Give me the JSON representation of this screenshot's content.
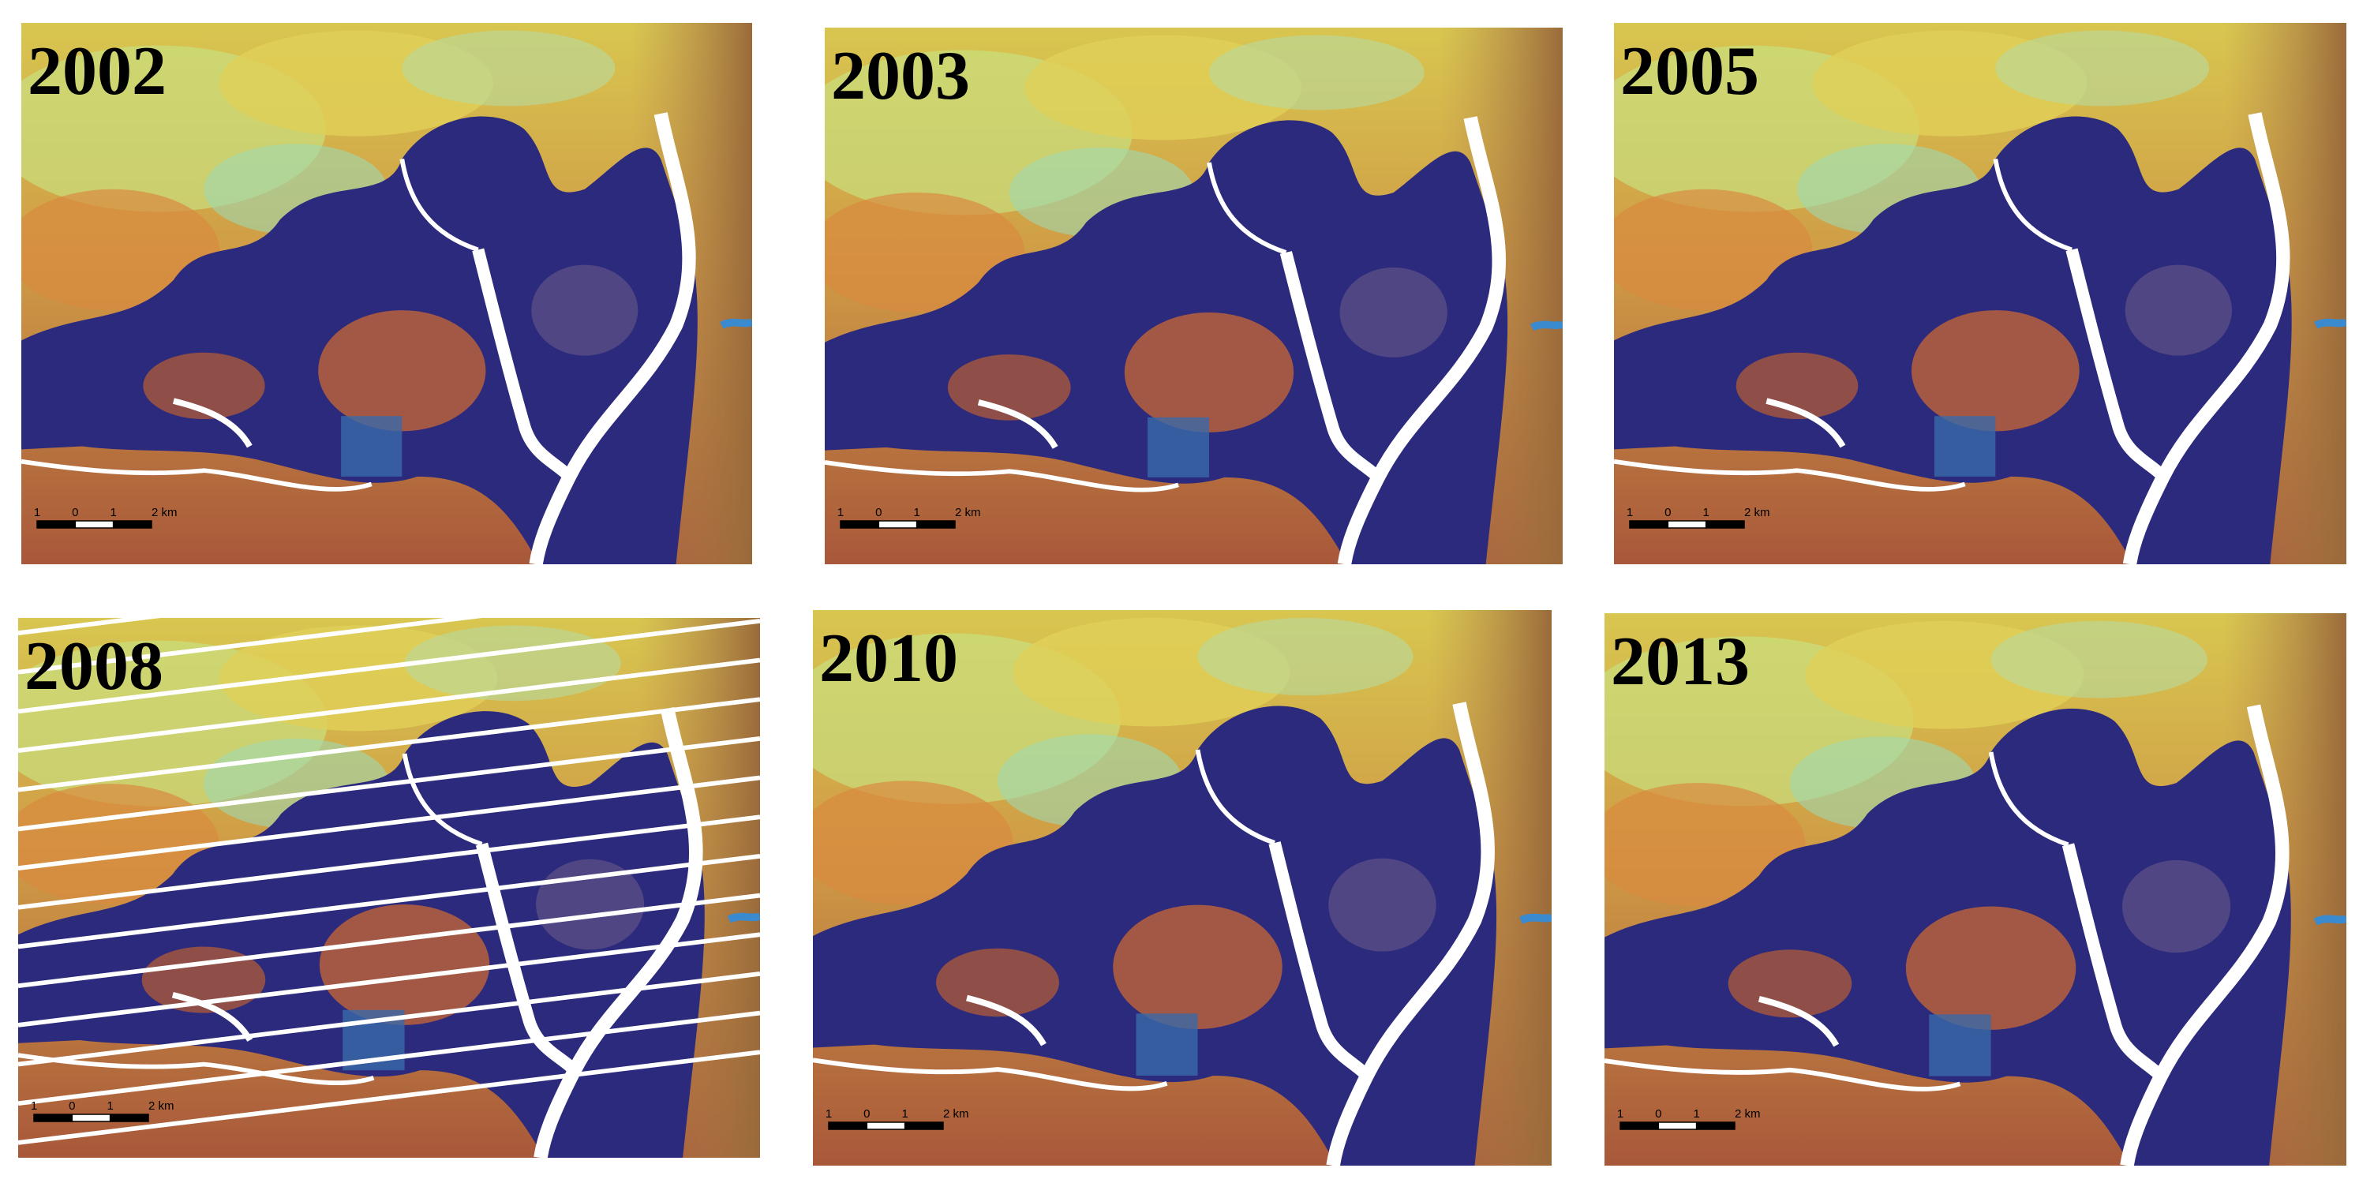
{
  "panels": [
    {
      "year": "2002",
      "scale_labels": [
        "1",
        "0",
        "1",
        "2 km"
      ]
    },
    {
      "year": "2003",
      "scale_labels": [
        "1",
        "0",
        "1",
        "2 km"
      ]
    },
    {
      "year": "2005",
      "scale_labels": [
        "1",
        "0",
        "1",
        "2 km"
      ]
    },
    {
      "year": "2008",
      "scale_labels": [
        "1",
        "0",
        "1",
        "2 km"
      ]
    },
    {
      "year": "2010",
      "scale_labels": [
        "1",
        "0",
        "1",
        "2 km"
      ]
    },
    {
      "year": "2013",
      "scale_labels": [
        "1",
        "0",
        "1",
        "2 km"
      ]
    }
  ]
}
